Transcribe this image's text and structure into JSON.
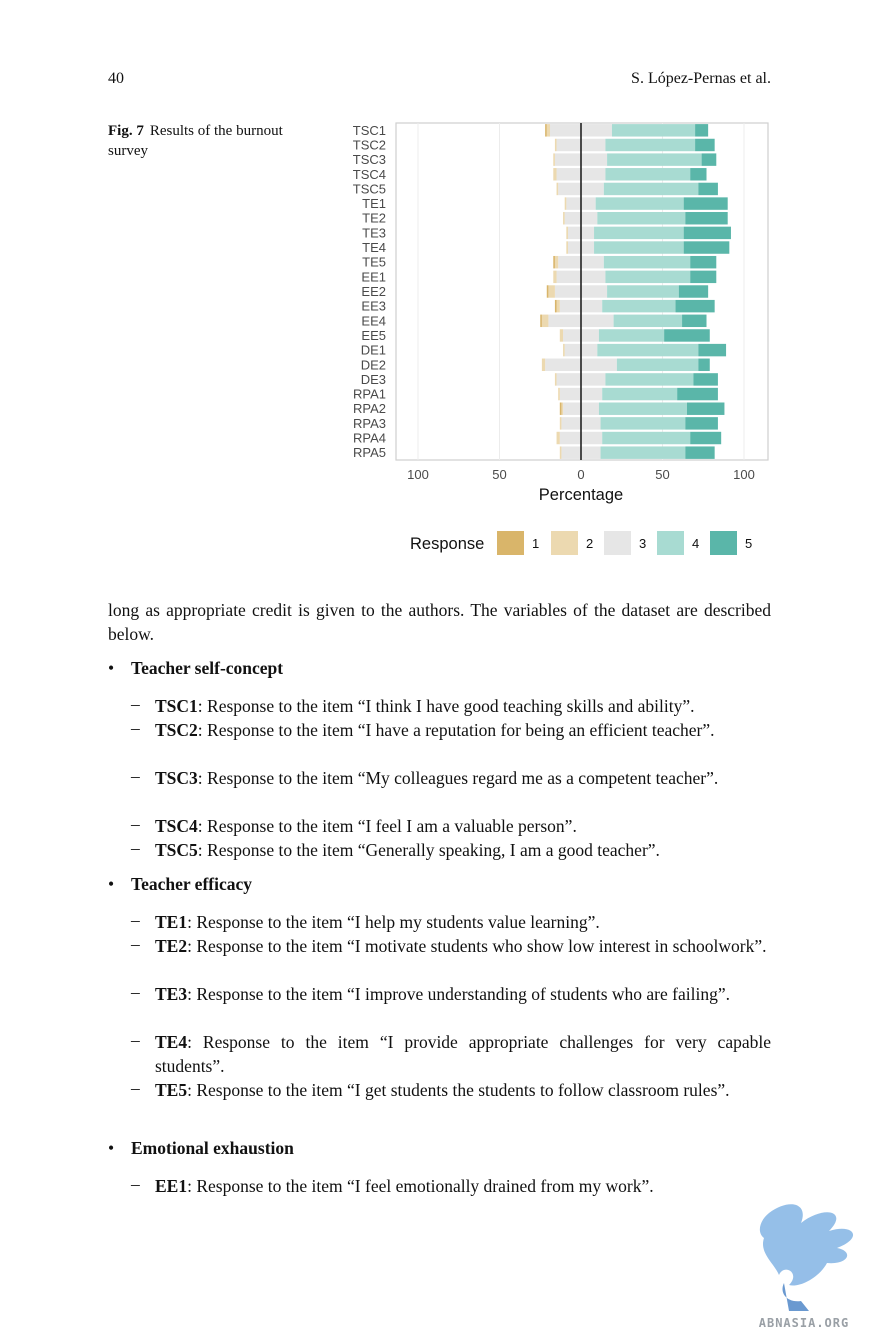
{
  "header": {
    "page_number": "40",
    "authors": "S. López-Pernas et al."
  },
  "figure": {
    "label": "Fig. 7",
    "caption": "Results of the burnout survey"
  },
  "chart_data": {
    "type": "bar",
    "subtype": "diverging-stacked-likert",
    "categories": [
      "TSC1",
      "TSC2",
      "TSC3",
      "TSC4",
      "TSC5",
      "TE1",
      "TE2",
      "TE3",
      "TE4",
      "TE5",
      "EE1",
      "EE2",
      "EE3",
      "EE4",
      "EE5",
      "DE1",
      "DE2",
      "DE3",
      "RPA1",
      "RPA2",
      "RPA3",
      "RPA4",
      "RPA5"
    ],
    "series": [
      {
        "name": "1",
        "color": "#d9b56a",
        "values": [
          1,
          0,
          0,
          0,
          0,
          0,
          0,
          0,
          0,
          1,
          0,
          1,
          1,
          1,
          0,
          0,
          0,
          0,
          0,
          1,
          0,
          0,
          0
        ]
      },
      {
        "name": "2",
        "color": "#ecd9b0",
        "values": [
          2,
          1,
          1,
          2,
          1,
          1,
          1,
          1,
          1,
          2,
          2,
          4,
          2,
          4,
          2,
          1,
          2,
          1,
          1,
          1,
          1,
          2,
          1
        ]
      },
      {
        "name": "3",
        "color": "#e6e6e6",
        "values": [
          38,
          30,
          32,
          30,
          28,
          18,
          20,
          16,
          16,
          28,
          30,
          32,
          26,
          40,
          22,
          20,
          44,
          30,
          26,
          22,
          24,
          26,
          24
        ]
      },
      {
        "name": "4",
        "color": "#a8dbd2",
        "values": [
          51,
          55,
          58,
          52,
          58,
          54,
          54,
          55,
          55,
          53,
          52,
          44,
          45,
          42,
          40,
          62,
          50,
          54,
          46,
          54,
          52,
          54,
          52
        ]
      },
      {
        "name": "5",
        "color": "#5ab6a9",
        "values": [
          8,
          12,
          9,
          10,
          12,
          27,
          26,
          29,
          28,
          16,
          16,
          18,
          24,
          15,
          28,
          17,
          7,
          15,
          25,
          23,
          20,
          19,
          18
        ]
      }
    ],
    "neutral_series": "3",
    "xlabel": "Percentage",
    "xticks": [
      "100",
      "50",
      "0",
      "50",
      "100"
    ],
    "xlim": [
      -100,
      100
    ],
    "legend": {
      "title": "Response",
      "placement": "bottom"
    }
  },
  "intro_paragraph": "long as appropriate credit is given to the authors. The variables of the dataset are described below.",
  "sections": [
    {
      "title": "Teacher self-concept",
      "items": [
        {
          "code": "TSC1",
          "text": ": Response to the item “I think I have good teaching skills and ability”."
        },
        {
          "code": "TSC2",
          "text": ": Response to the item “I have a reputation for being an efficient teacher”."
        },
        {
          "code": "TSC3",
          "text": ": Response to the item “My colleagues regard me as a competent teacher”."
        },
        {
          "code": "TSC4",
          "text": ": Response to the item “I feel I am a valuable person”."
        },
        {
          "code": "TSC5",
          "text": ": Response to the item “Generally speaking, I am a good teacher”."
        }
      ]
    },
    {
      "title": "Teacher efficacy",
      "items": [
        {
          "code": "TE1",
          "text": ": Response to the item “I help my students value learning”."
        },
        {
          "code": "TE2",
          "text": ": Response to the item “I motivate students who show low interest in schoolwork”."
        },
        {
          "code": "TE3",
          "text": ": Response to the item “I improve understanding of students who are failing”."
        },
        {
          "code": "TE4",
          "text": ": Response to the item “I provide appropriate challenges for very capable students”."
        },
        {
          "code": "TE5",
          "text": ": Response to the item “I get students the students to follow classroom rules”."
        }
      ]
    },
    {
      "title": "Emotional exhaustion",
      "items": [
        {
          "code": "EE1",
          "text": ": Response to the item “I feel emotionally drained from my work”."
        }
      ]
    }
  ],
  "bullet_glyph": "•",
  "dash_glyph": "–",
  "watermark": {
    "text": "ABNASIA.ORG",
    "icon": "griffin-logo-icon"
  }
}
